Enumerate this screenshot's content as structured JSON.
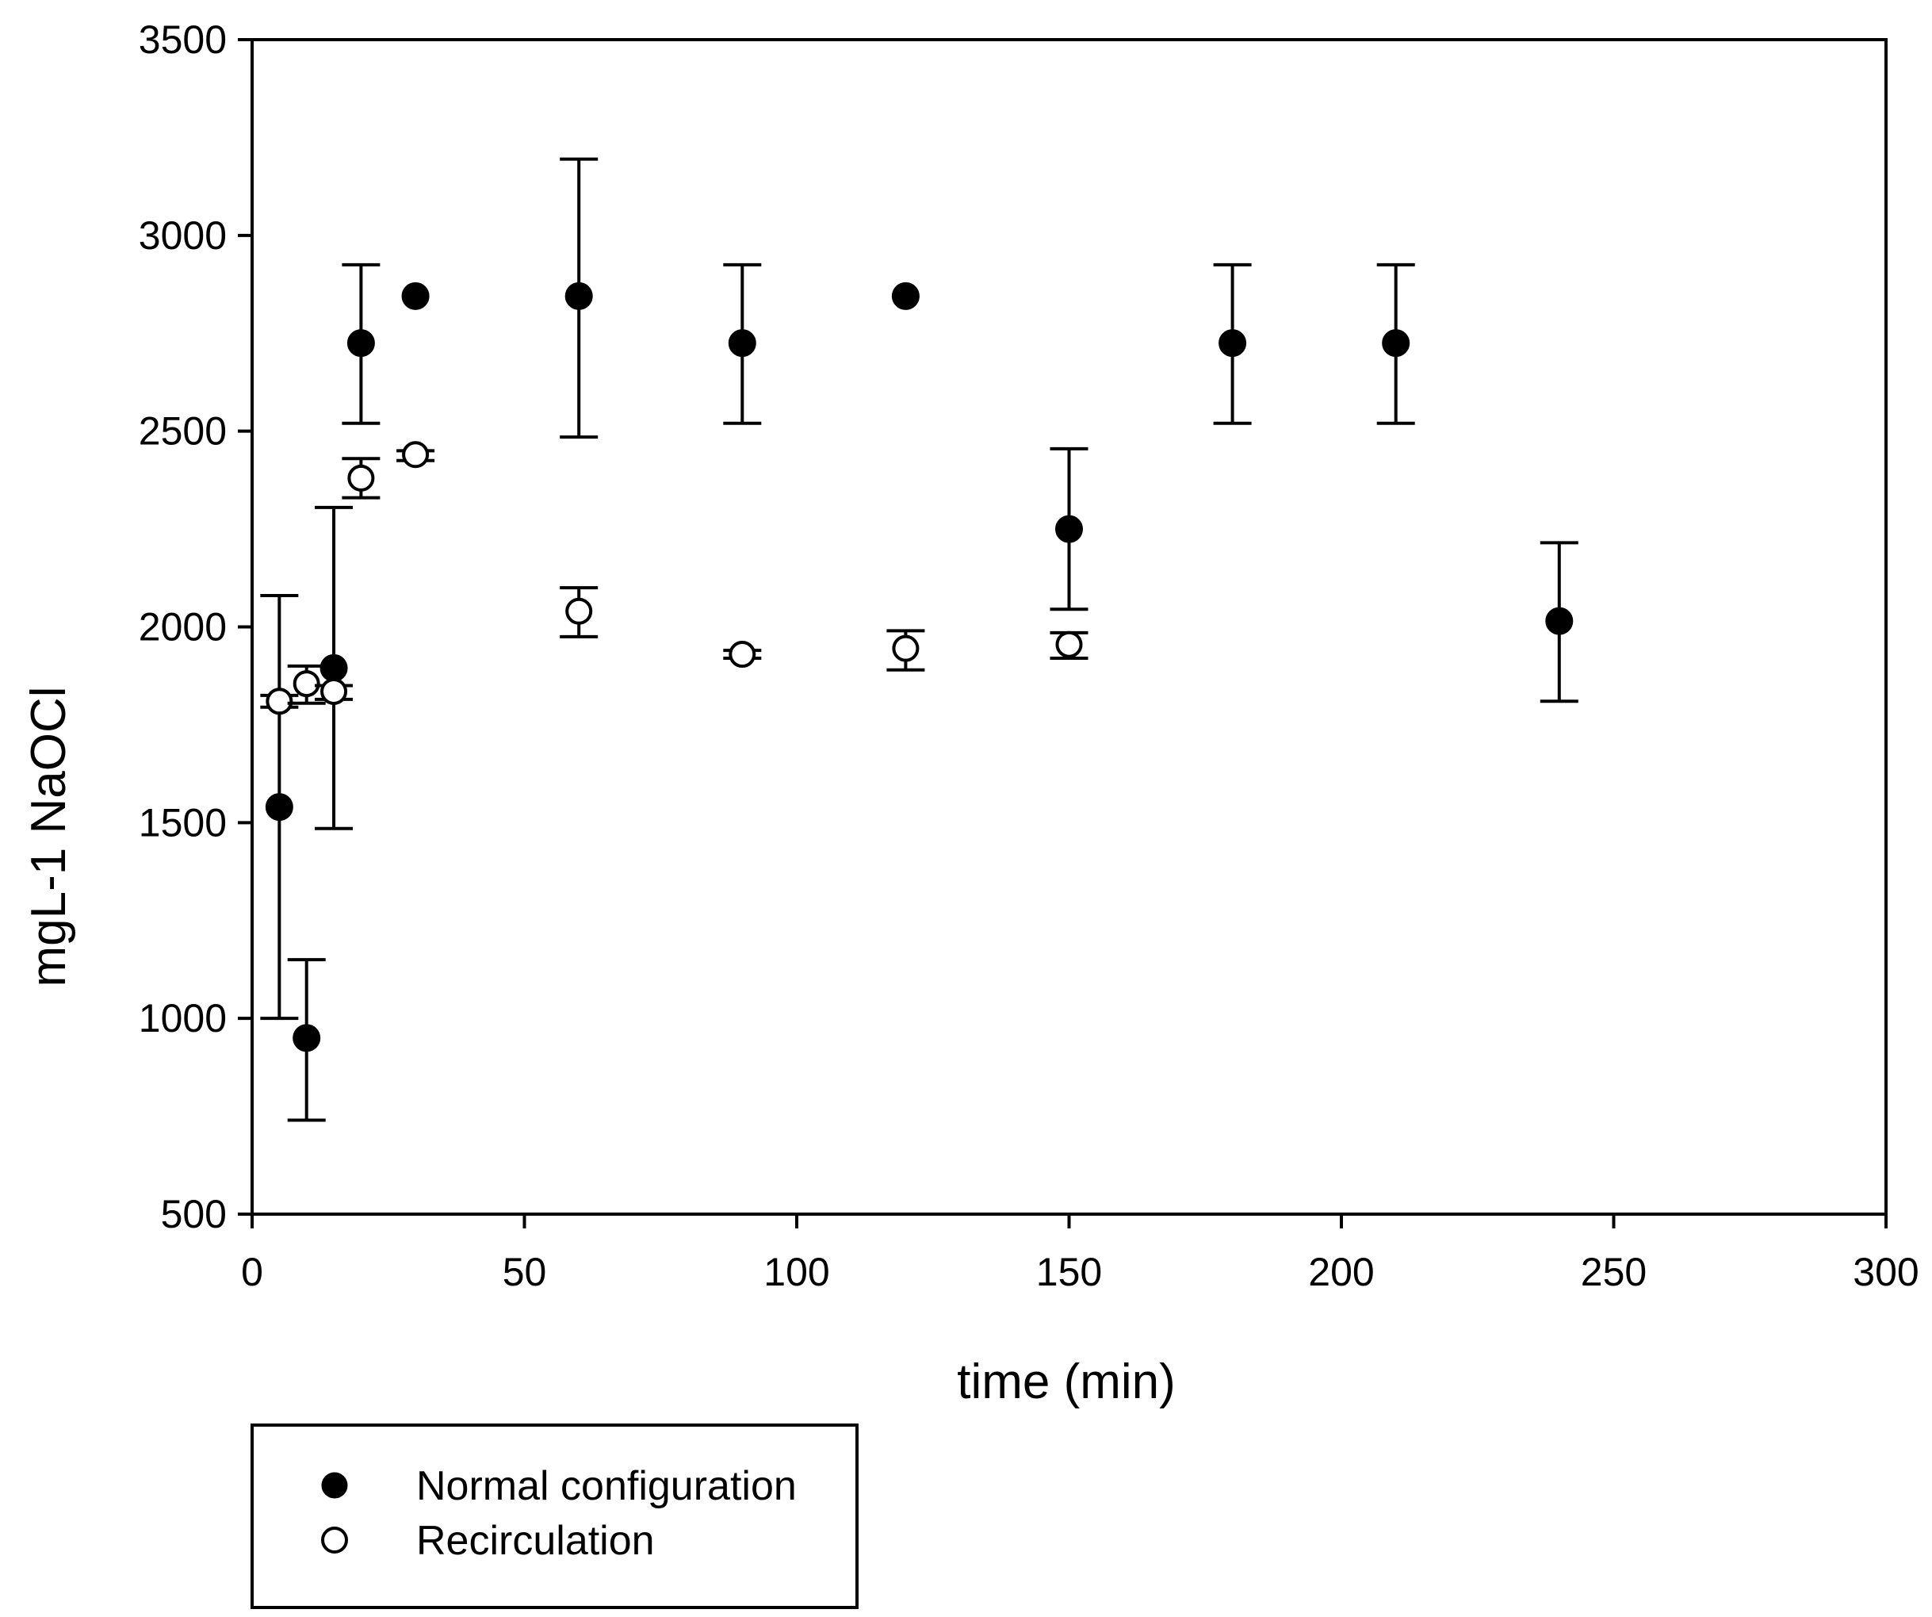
{
  "chart_data": {
    "type": "scatter",
    "title": "",
    "xlabel": "time (min)",
    "ylabel": "mgL-1 NaOCl",
    "xlim": [
      0,
      300
    ],
    "ylim": [
      500,
      3500
    ],
    "xticks": [
      0,
      50,
      100,
      150,
      200,
      250,
      300
    ],
    "yticks": [
      500,
      1000,
      1500,
      2000,
      2500,
      3000,
      3500
    ],
    "grid": false,
    "legend_position": "bottom-left, below axes",
    "series": [
      {
        "name": "Normal configuration",
        "marker": "filled-circle",
        "color": "#000000",
        "points": [
          {
            "x": 5,
            "y": 1540,
            "err_low": 1000,
            "err_high": 2080
          },
          {
            "x": 10,
            "y": 950,
            "err_low": 740,
            "err_high": 1150
          },
          {
            "x": 15,
            "y": 1895,
            "err_low": 1485,
            "err_high": 2305
          },
          {
            "x": 20,
            "y": 2725,
            "err_low": 2520,
            "err_high": 2925
          },
          {
            "x": 30,
            "y": 2845,
            "err_low": null,
            "err_high": null
          },
          {
            "x": 60,
            "y": 2845,
            "err_low": 2485,
            "err_high": 3195
          },
          {
            "x": 90,
            "y": 2725,
            "err_low": 2520,
            "err_high": 2925
          },
          {
            "x": 120,
            "y": 2845,
            "err_low": null,
            "err_high": null
          },
          {
            "x": 150,
            "y": 2250,
            "err_low": 2045,
            "err_high": 2455
          },
          {
            "x": 180,
            "y": 2725,
            "err_low": 2520,
            "err_high": 2925
          },
          {
            "x": 210,
            "y": 2725,
            "err_low": 2520,
            "err_high": 2925
          },
          {
            "x": 240,
            "y": 2015,
            "err_low": 1810,
            "err_high": 2215
          }
        ]
      },
      {
        "name": "Recirculation",
        "marker": "open-circle",
        "color": "#000000",
        "points": [
          {
            "x": 5,
            "y": 1810,
            "err_low": 1795,
            "err_high": 1825
          },
          {
            "x": 10,
            "y": 1855,
            "err_low": 1805,
            "err_high": 1900
          },
          {
            "x": 15,
            "y": 1835,
            "err_low": 1815,
            "err_high": 1850
          },
          {
            "x": 20,
            "y": 2380,
            "err_low": 2330,
            "err_high": 2430
          },
          {
            "x": 30,
            "y": 2440,
            "err_low": 2425,
            "err_high": 2450
          },
          {
            "x": 60,
            "y": 2040,
            "err_low": 1975,
            "err_high": 2100
          },
          {
            "x": 90,
            "y": 1930,
            "err_low": 1920,
            "err_high": 1940
          },
          {
            "x": 120,
            "y": 1945,
            "err_low": 1890,
            "err_high": 1990
          },
          {
            "x": 150,
            "y": 1955,
            "err_low": 1920,
            "err_high": 1985
          }
        ]
      }
    ]
  }
}
